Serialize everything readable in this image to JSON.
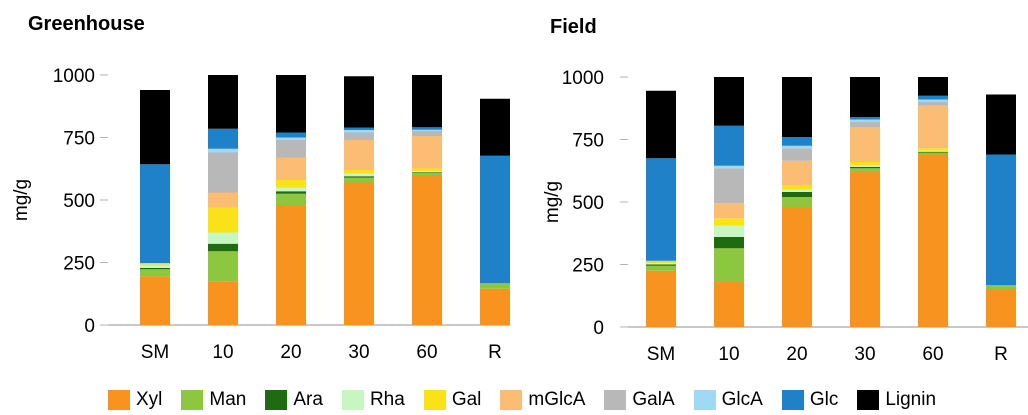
{
  "colors": {
    "Xyl": "#f7931e",
    "Man": "#8dc63f",
    "Ara": "#1e6b12",
    "Rha": "#c6f7c1",
    "Gal": "#f9e318",
    "mGlcA": "#fbbd73",
    "GalA": "#b8b8b8",
    "GlcA": "#9fd9f3",
    "Glc": "#1f82c8",
    "Lignin": "#000000",
    "axis": "#b5b5b5"
  },
  "legend": [
    "Xyl",
    "Man",
    "Ara",
    "Rha",
    "Gal",
    "mGlcA",
    "GalA",
    "GlcA",
    "Glc",
    "Lignin"
  ],
  "chart_data": [
    {
      "type": "bar",
      "stacked": true,
      "title": "Greenhouse",
      "ylabel": "mg/g",
      "ylim": [
        0,
        1000
      ],
      "yticks": [
        "0",
        "250",
        "500",
        "750",
        "1000"
      ],
      "categories": [
        "SM",
        "10",
        "20",
        "30",
        "60",
        "R"
      ],
      "series": [
        {
          "name": "Xyl",
          "values": [
            195,
            175,
            480,
            570,
            600,
            145
          ]
        },
        {
          "name": "Man",
          "values": [
            28,
            120,
            45,
            20,
            8,
            22
          ]
        },
        {
          "name": "Ara",
          "values": [
            5,
            30,
            10,
            5,
            3,
            0
          ]
        },
        {
          "name": "Rha",
          "values": [
            10,
            45,
            15,
            10,
            5,
            0
          ]
        },
        {
          "name": "Gal",
          "values": [
            5,
            100,
            30,
            15,
            10,
            0
          ]
        },
        {
          "name": "mGlcA",
          "values": [
            0,
            60,
            90,
            120,
            130,
            0
          ]
        },
        {
          "name": "GalA",
          "values": [
            0,
            160,
            70,
            30,
            20,
            0
          ]
        },
        {
          "name": "GlcA",
          "values": [
            5,
            15,
            10,
            10,
            5,
            0
          ]
        },
        {
          "name": "Glc",
          "values": [
            395,
            80,
            20,
            10,
            10,
            510
          ]
        },
        {
          "name": "Lignin",
          "values": [
            297,
            215,
            230,
            205,
            209,
            228
          ]
        }
      ]
    },
    {
      "type": "bar",
      "stacked": true,
      "title": "Field",
      "ylabel": "mg/g",
      "ylim": [
        0,
        1000
      ],
      "yticks": [
        "0",
        "250",
        "500",
        "750",
        "1000"
      ],
      "categories": [
        "SM",
        "10",
        "20",
        "30",
        "60",
        "R"
      ],
      "series": [
        {
          "name": "Xyl",
          "values": [
            225,
            180,
            480,
            620,
            690,
            150
          ]
        },
        {
          "name": "Man",
          "values": [
            20,
            135,
            40,
            15,
            8,
            18
          ]
        },
        {
          "name": "Ara",
          "values": [
            5,
            45,
            20,
            5,
            3,
            0
          ]
        },
        {
          "name": "Rha",
          "values": [
            5,
            45,
            10,
            5,
            4,
            0
          ]
        },
        {
          "name": "Gal",
          "values": [
            5,
            30,
            15,
            15,
            10,
            0
          ]
        },
        {
          "name": "mGlcA",
          "values": [
            0,
            60,
            100,
            140,
            170,
            0
          ]
        },
        {
          "name": "GalA",
          "values": [
            0,
            140,
            50,
            20,
            15,
            0
          ]
        },
        {
          "name": "GlcA",
          "values": [
            5,
            10,
            10,
            10,
            10,
            0
          ]
        },
        {
          "name": "Glc",
          "values": [
            410,
            160,
            35,
            10,
            15,
            522
          ]
        },
        {
          "name": "Lignin",
          "values": [
            270,
            195,
            240,
            160,
            75,
            240
          ]
        }
      ]
    }
  ]
}
